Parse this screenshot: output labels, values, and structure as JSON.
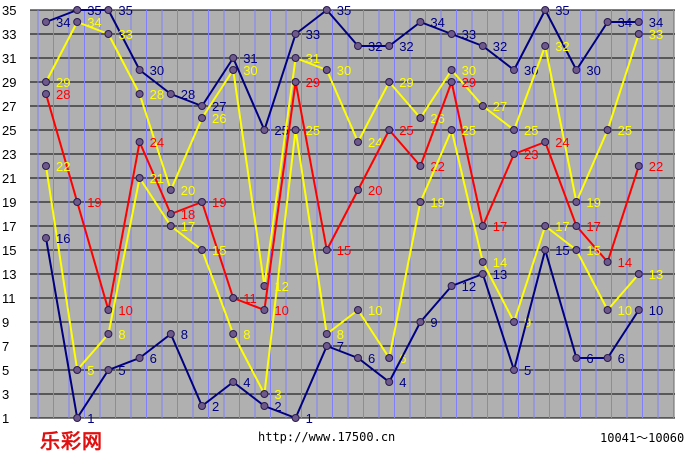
{
  "chart_data": {
    "type": "line",
    "title": "",
    "xlabel": "",
    "ylabel": "",
    "ylim": [
      1,
      35
    ],
    "y_ticks": [
      1,
      3,
      5,
      7,
      9,
      11,
      13,
      15,
      17,
      19,
      21,
      23,
      25,
      27,
      29,
      31,
      33,
      35
    ],
    "grid": true,
    "grid_colors": {
      "major": "#000000",
      "minor": "#b0b0b0",
      "vertical": "#8080ff"
    },
    "background": "#b0b0b0",
    "series": [
      {
        "color": "#000080",
        "values": [
          34,
          35,
          35,
          30,
          28,
          27,
          31,
          25,
          33,
          35,
          32,
          32,
          34,
          33,
          32,
          30,
          35,
          30,
          34,
          34
        ]
      },
      {
        "color": "#ffff00",
        "values": [
          29,
          34,
          33,
          28,
          20,
          26,
          30,
          12,
          31,
          30,
          24,
          29,
          26,
          30,
          27,
          25,
          32,
          19,
          25,
          33
        ]
      },
      {
        "color": "#ff0000",
        "values": [
          28,
          19,
          10,
          24,
          18,
          19,
          11,
          10,
          29,
          15,
          20,
          25,
          22,
          29,
          17,
          23,
          24,
          17,
          14,
          22
        ]
      },
      {
        "color": "#ffff00",
        "values": [
          22,
          5,
          8,
          21,
          17,
          15,
          8,
          3,
          25,
          8,
          10,
          6,
          19,
          25,
          14,
          9,
          17,
          15,
          10,
          13
        ]
      },
      {
        "color": "#000080",
        "values": [
          16,
          1,
          5,
          6,
          8,
          2,
          4,
          2,
          1,
          7,
          6,
          4,
          9,
          12,
          13,
          5,
          15,
          6,
          6,
          10
        ]
      }
    ]
  },
  "footer": {
    "logo_text": "乐彩网",
    "url": "http://www.17500.cn",
    "range": "10041～10060"
  }
}
